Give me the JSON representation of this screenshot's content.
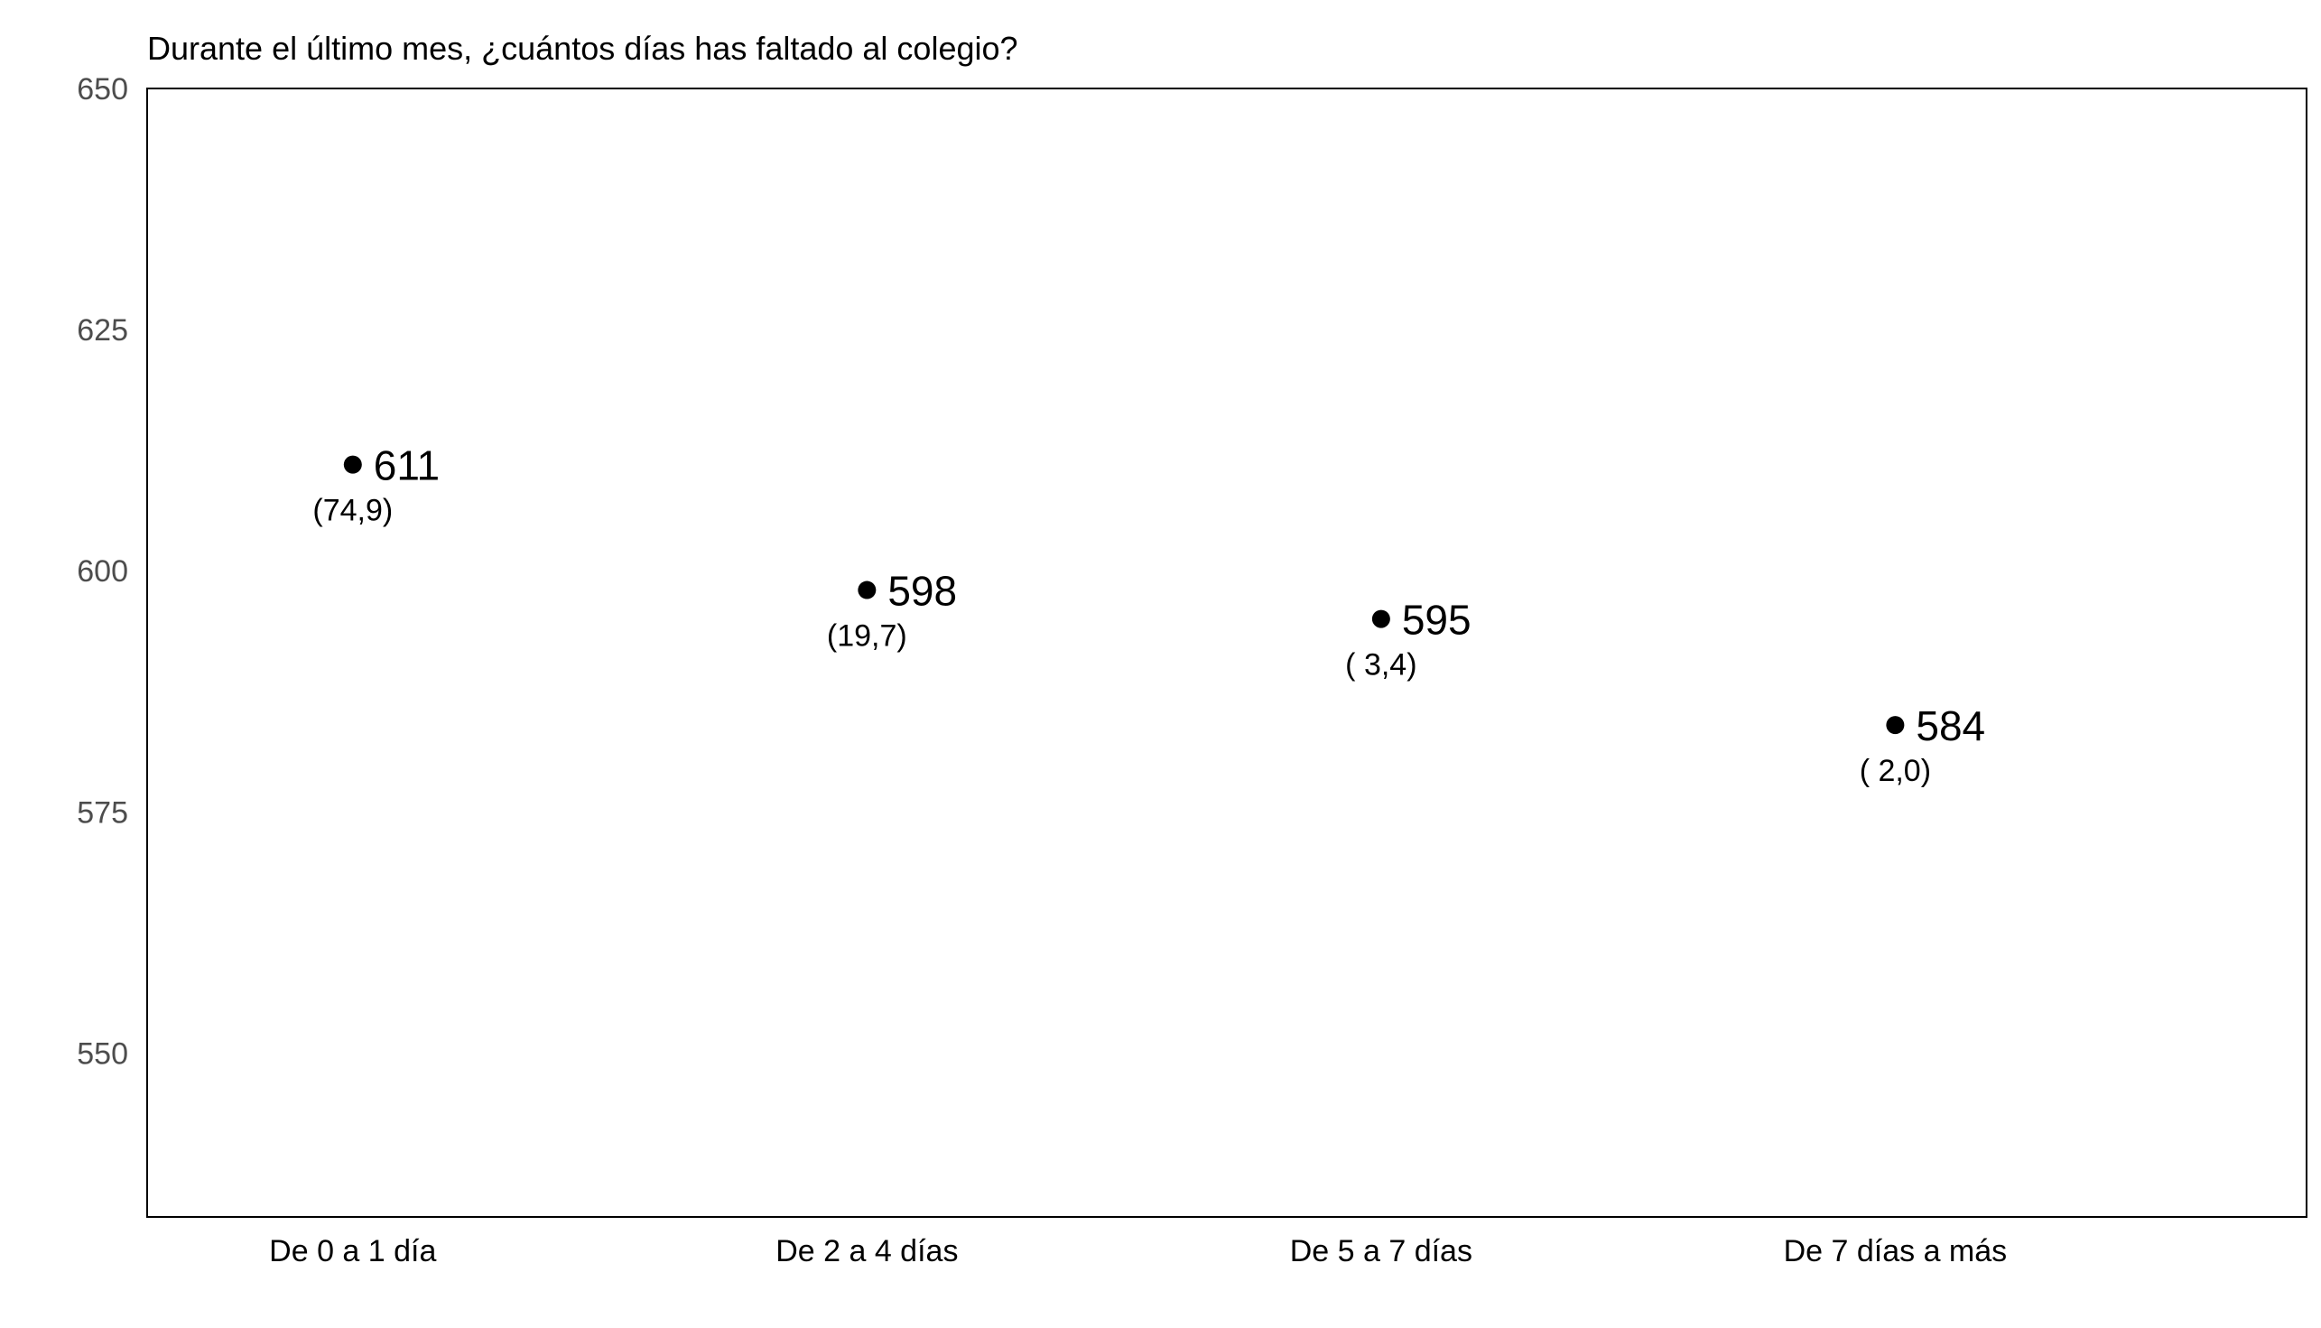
{
  "chart_data": {
    "type": "scatter",
    "title": "Durante el último mes, ¿cuántos días has faltado al colegio?",
    "xlabel": "",
    "ylabel": "",
    "categories": [
      "De 0 a 1 día",
      "De 2 a 4 días",
      "De 5 a 7 días",
      "De 7 días a más"
    ],
    "values": [
      611,
      598,
      595,
      584
    ],
    "value_labels": [
      "611",
      "598",
      "595",
      "584"
    ],
    "percent_labels": [
      "(74,9)",
      "(19,7)",
      "( 3,4)",
      "( 2,0)"
    ],
    "ylim": [
      533,
      650
    ],
    "yticks": [
      550,
      575,
      600,
      625,
      650
    ],
    "ytick_labels": [
      "550",
      "575",
      "600",
      "625",
      "650"
    ],
    "grid": false,
    "legend": "none",
    "colors": {
      "point": "#000000",
      "axis": "#000000",
      "ytick_text": "#4d4d4d"
    }
  }
}
